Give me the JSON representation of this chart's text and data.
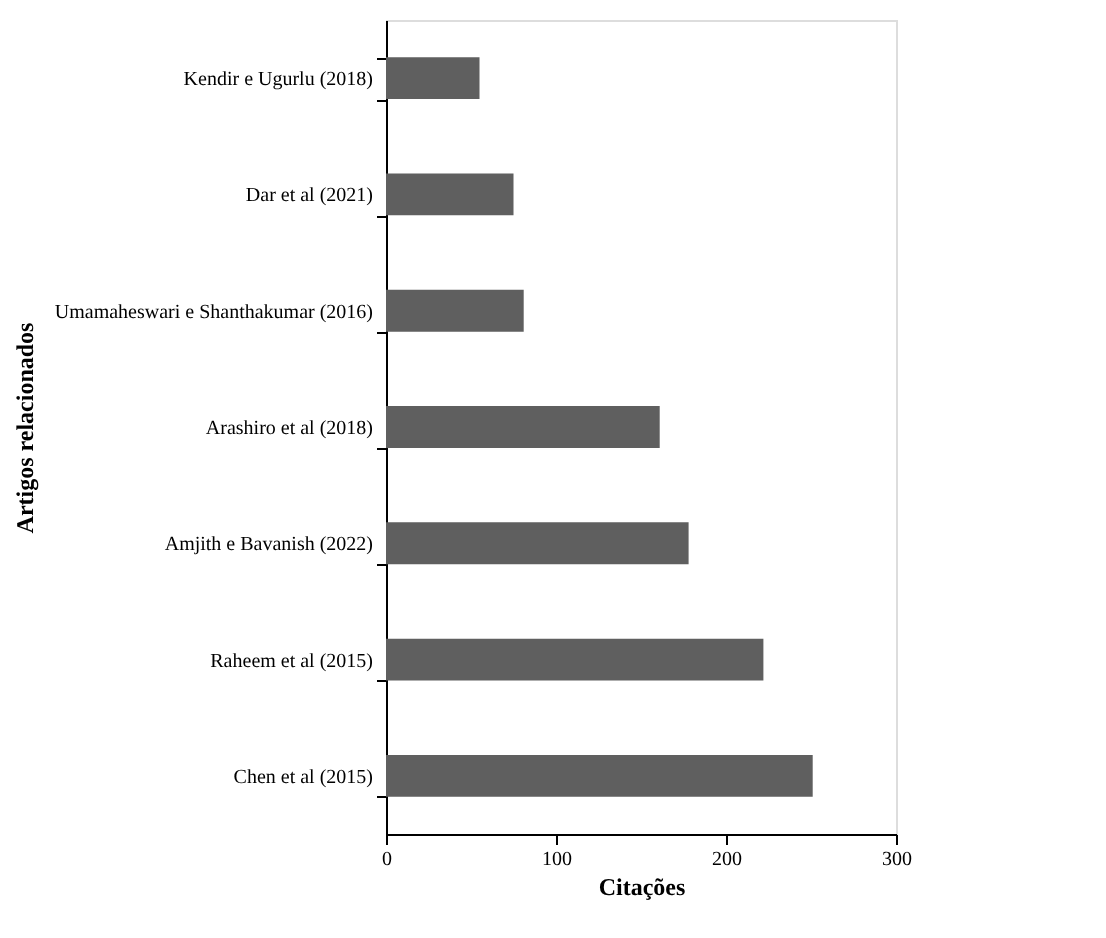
{
  "chart_data": {
    "type": "bar",
    "orientation": "horizontal",
    "xlabel": "Citações",
    "ylabel": "Artigos relacionados",
    "categories": [
      "Kendir e Ugurlu (2018)",
      "Dar et al (2021)",
      "Umamaheswari e Shanthakumar (2016)",
      "Arashiro et al (2018)",
      "Amjith e Bavanish (2022)",
      "Raheem et al (2015)",
      "Chen et al (2015)"
    ],
    "values": [
      55,
      75,
      81,
      161,
      178,
      222,
      251
    ],
    "color": "#5f5f5f",
    "xlim": [
      0,
      300
    ],
    "xticks": [
      0,
      100,
      200,
      300
    ],
    "grid": false
  }
}
